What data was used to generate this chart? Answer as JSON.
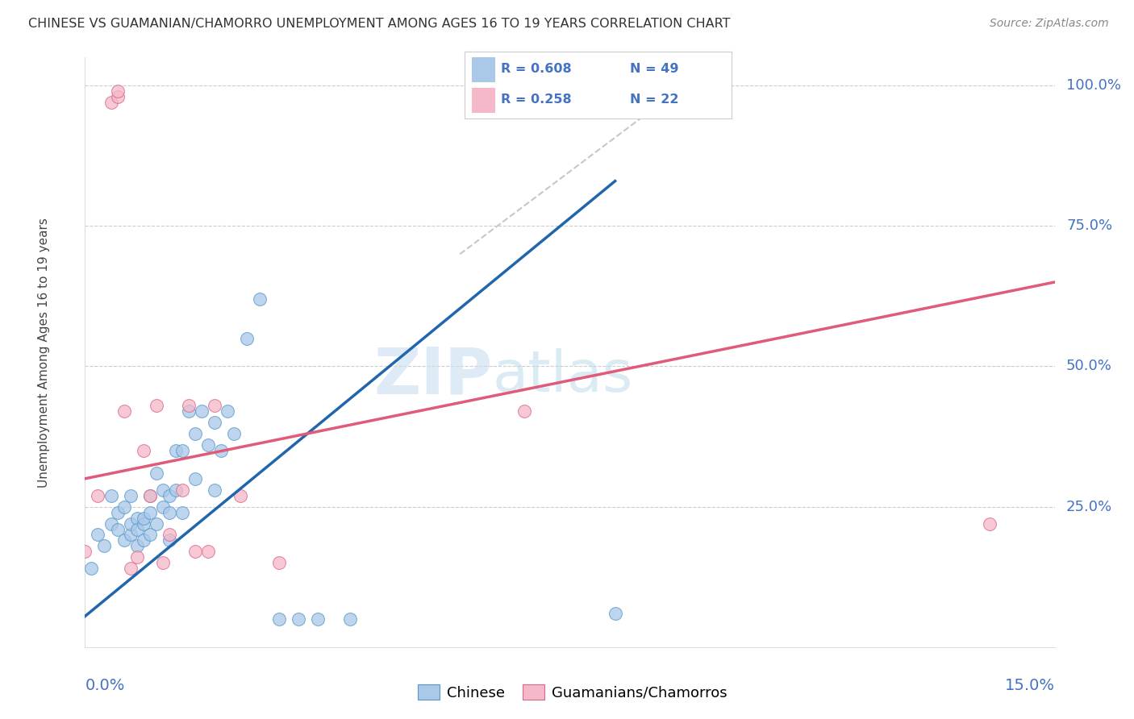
{
  "title": "CHINESE VS GUAMANIAN/CHAMORRO UNEMPLOYMENT AMONG AGES 16 TO 19 YEARS CORRELATION CHART",
  "source": "Source: ZipAtlas.com",
  "ylabel": "Unemployment Among Ages 16 to 19 years",
  "color_chinese_fill": "#aac8e8",
  "color_chinese_edge": "#5599cc",
  "color_chinese_line": "#2166ac",
  "color_guam_fill": "#f4b8c8",
  "color_guam_edge": "#dd6688",
  "color_guam_line": "#e05a7a",
  "color_ref_line": "#c0c8d0",
  "color_grid": "#cccccc",
  "color_axis_blue": "#4472c4",
  "color_title": "#333333",
  "color_source": "#888888",
  "background_color": "#ffffff",
  "xmin": 0.0,
  "xmax": 0.15,
  "ymin": 0.0,
  "ymax": 1.05,
  "ytick_values": [
    0.25,
    0.5,
    0.75,
    1.0
  ],
  "ytick_labels": [
    "25.0%",
    "50.0%",
    "75.0%",
    "100.0%"
  ],
  "chinese_line_x0": 0.0,
  "chinese_line_y0": 0.055,
  "chinese_line_x1": 0.082,
  "chinese_line_y1": 0.83,
  "guam_line_x0": 0.0,
  "guam_line_y0": 0.3,
  "guam_line_x1": 0.15,
  "guam_line_y1": 0.65,
  "ref_line_x0": 0.058,
  "ref_line_y0": 0.7,
  "ref_line_x1": 0.095,
  "ref_line_y1": 1.02,
  "chinese_x": [
    0.001,
    0.002,
    0.003,
    0.004,
    0.004,
    0.005,
    0.005,
    0.006,
    0.006,
    0.007,
    0.007,
    0.007,
    0.008,
    0.008,
    0.008,
    0.009,
    0.009,
    0.009,
    0.01,
    0.01,
    0.01,
    0.011,
    0.011,
    0.012,
    0.012,
    0.013,
    0.013,
    0.013,
    0.014,
    0.014,
    0.015,
    0.015,
    0.016,
    0.017,
    0.017,
    0.018,
    0.019,
    0.02,
    0.02,
    0.021,
    0.022,
    0.023,
    0.025,
    0.027,
    0.03,
    0.033,
    0.036,
    0.041,
    0.082
  ],
  "chinese_y": [
    0.14,
    0.2,
    0.18,
    0.22,
    0.27,
    0.21,
    0.24,
    0.19,
    0.25,
    0.2,
    0.22,
    0.27,
    0.18,
    0.23,
    0.21,
    0.22,
    0.19,
    0.23,
    0.24,
    0.2,
    0.27,
    0.22,
    0.31,
    0.25,
    0.28,
    0.27,
    0.19,
    0.24,
    0.35,
    0.28,
    0.24,
    0.35,
    0.42,
    0.38,
    0.3,
    0.42,
    0.36,
    0.4,
    0.28,
    0.35,
    0.42,
    0.38,
    0.55,
    0.62,
    0.05,
    0.05,
    0.05,
    0.05,
    0.06
  ],
  "guam_x": [
    0.0,
    0.002,
    0.004,
    0.005,
    0.005,
    0.006,
    0.007,
    0.008,
    0.009,
    0.01,
    0.011,
    0.012,
    0.013,
    0.015,
    0.016,
    0.017,
    0.019,
    0.02,
    0.024,
    0.03,
    0.068,
    0.14
  ],
  "guam_y": [
    0.17,
    0.27,
    0.97,
    0.98,
    0.99,
    0.42,
    0.14,
    0.16,
    0.35,
    0.27,
    0.43,
    0.15,
    0.2,
    0.28,
    0.43,
    0.17,
    0.17,
    0.43,
    0.27,
    0.15,
    0.42,
    0.22
  ],
  "watermark_text": "ZIPatlas",
  "legend_R1": "0.608",
  "legend_N1": "49",
  "legend_R2": "0.258",
  "legend_N2": "22"
}
